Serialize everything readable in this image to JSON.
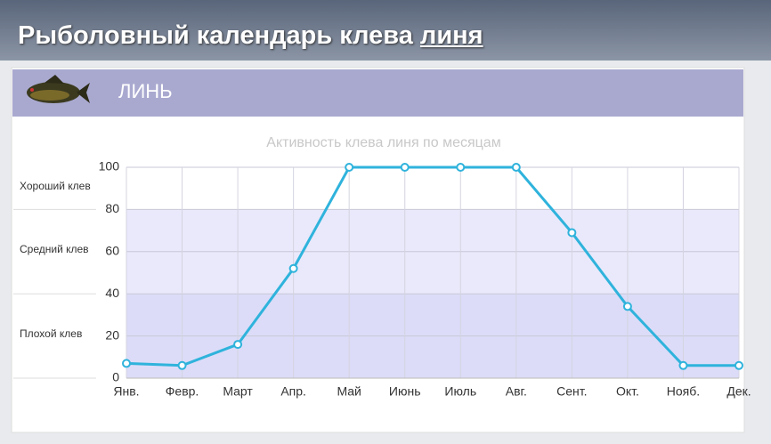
{
  "header": {
    "title": "Рыболовный календарь клева",
    "fish_link": "линя"
  },
  "panel": {
    "name": "ЛИНЬ"
  },
  "chart_data": {
    "type": "line",
    "title": "Активность клева линя по месяцам",
    "categories": [
      "Янв.",
      "Февр.",
      "Март",
      "Апр.",
      "Май",
      "Июнь",
      "Июль",
      "Авг.",
      "Сент.",
      "Окт.",
      "Нояб.",
      "Дек."
    ],
    "series": [
      {
        "name": "Активность",
        "color": "#2fb3dc",
        "values": [
          7,
          6,
          16,
          52,
          100,
          100,
          100,
          100,
          69,
          34,
          6,
          6
        ]
      }
    ],
    "ylim": [
      0,
      100
    ],
    "yticks": [
      0,
      20,
      40,
      60,
      80,
      100
    ],
    "grid": true,
    "bands": [
      {
        "label": "Плохой клев",
        "from": 0,
        "to": 40,
        "color": "#dcdcf8"
      },
      {
        "label": "Средний клев",
        "from": 40,
        "to": 80,
        "color": "#e9e9fb"
      },
      {
        "label": "Хороший клев",
        "from": 80,
        "to": 100,
        "color": "#ffffff"
      }
    ]
  }
}
